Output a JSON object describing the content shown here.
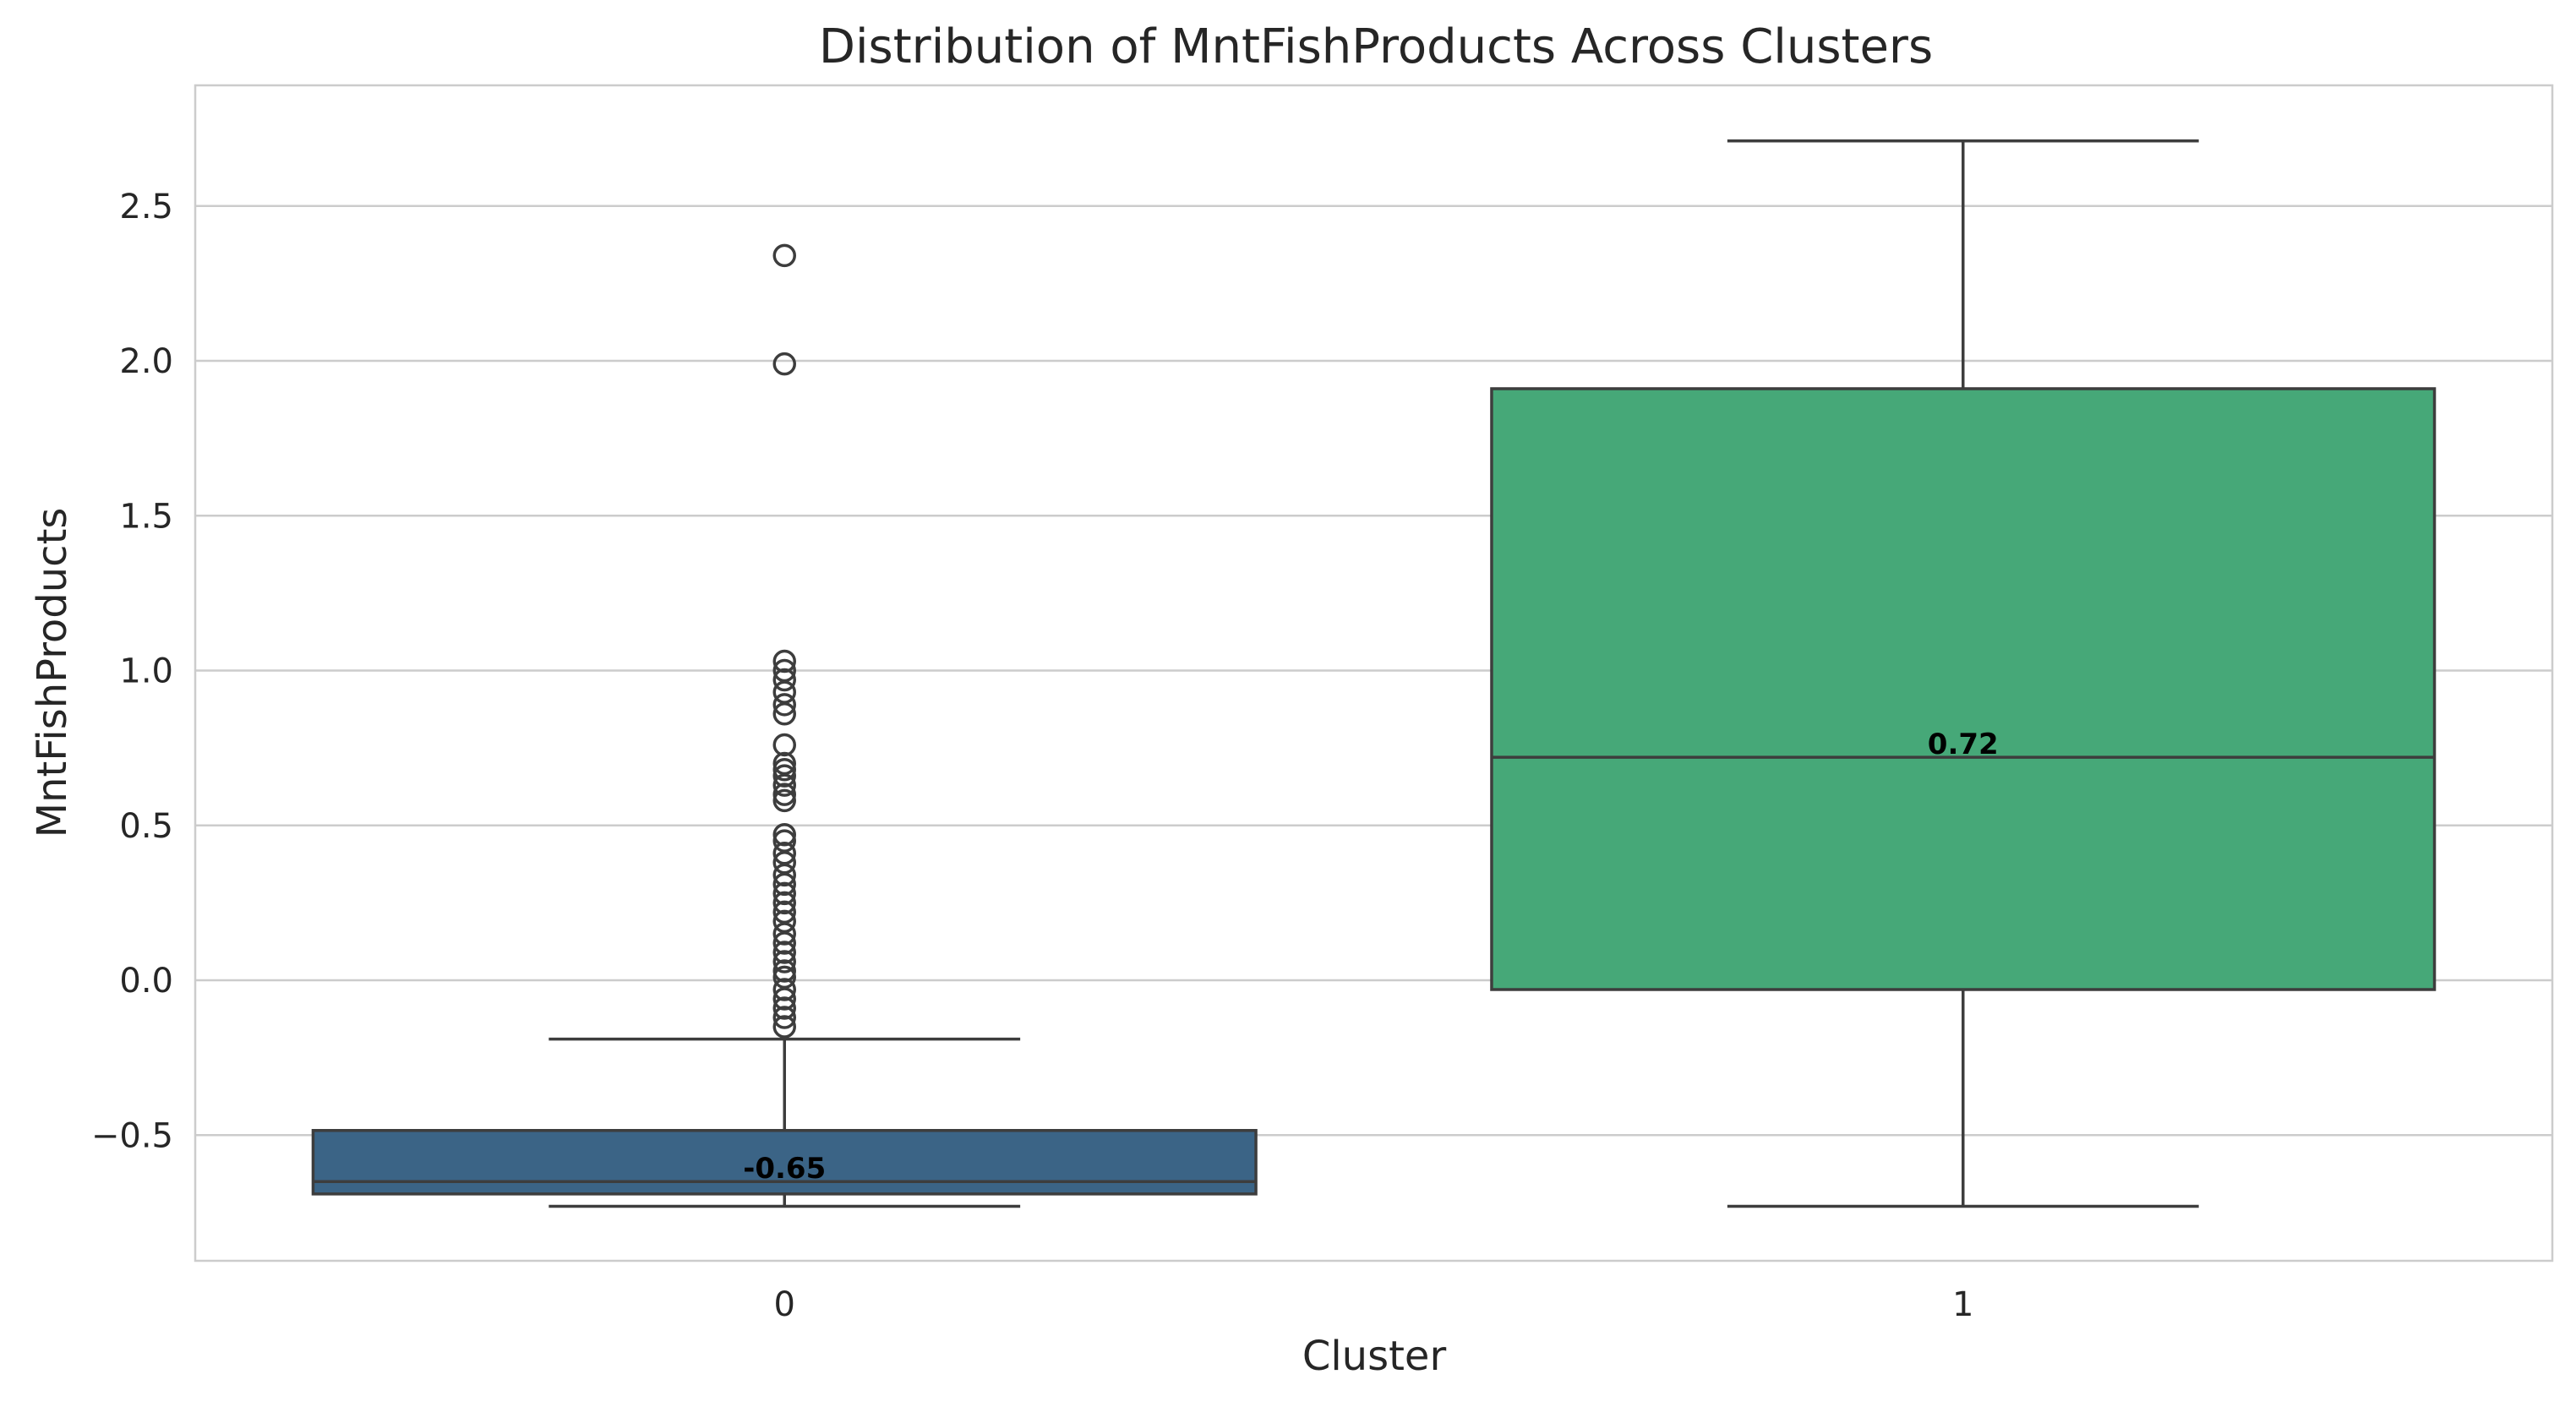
{
  "chart_data": {
    "type": "box",
    "title": "Distribution of MntFishProducts Across Clusters",
    "xlabel": "Cluster",
    "ylabel": "MntFishProducts",
    "categories": [
      "0",
      "1"
    ],
    "ylim": [
      -0.9,
      2.9
    ],
    "yticks": [
      -0.5,
      0.0,
      0.5,
      1.0,
      1.5,
      2.0,
      2.5
    ],
    "ytick_labels": [
      "−0.5",
      "0.0",
      "0.5",
      "1.0",
      "1.5",
      "2.0",
      "2.5"
    ],
    "grid": true,
    "boxes": [
      {
        "category": "0",
        "whisker_low": -0.73,
        "q1": -0.69,
        "median": -0.65,
        "q3": -0.485,
        "whisker_high": -0.19,
        "median_label": "-0.65",
        "color": "#3b6486",
        "outliers": [
          2.34,
          1.99,
          1.03,
          1.0,
          0.97,
          0.93,
          0.89,
          0.86,
          0.76,
          0.7,
          0.68,
          0.66,
          0.63,
          0.6,
          0.58,
          0.47,
          0.45,
          0.41,
          0.38,
          0.34,
          0.31,
          0.28,
          0.25,
          0.22,
          0.19,
          0.15,
          0.12,
          0.09,
          0.06,
          0.03,
          0.01,
          -0.03,
          -0.06,
          -0.09,
          -0.12,
          -0.15
        ]
      },
      {
        "category": "1",
        "whisker_low": -0.73,
        "q1": -0.03,
        "median": 0.72,
        "q3": 1.91,
        "whisker_high": 2.71,
        "median_label": "0.72",
        "color": "#46a878",
        "outliers": []
      }
    ]
  }
}
